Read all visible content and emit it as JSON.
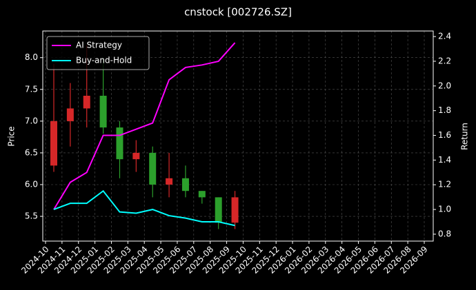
{
  "chart_data": {
    "type": "candlestick",
    "title": "cnstock [002726.SZ]",
    "ylabel": "Price",
    "y2label": "Return",
    "x": [
      "2024-10",
      "2024-11",
      "2024-12",
      "2025-01",
      "2025-02",
      "2025-03",
      "2025-04",
      "2025-05",
      "2025-06",
      "2025-07",
      "2025-08",
      "2025-09"
    ],
    "open": [
      6.3,
      7.0,
      7.2,
      7.4,
      6.9,
      6.4,
      6.5,
      6.0,
      6.1,
      5.9,
      5.8,
      5.4
    ],
    "high": [
      7.9,
      7.6,
      8.2,
      8.0,
      7.0,
      6.7,
      6.6,
      6.5,
      6.3,
      5.9,
      5.8,
      5.9
    ],
    "low": [
      6.2,
      6.6,
      6.9,
      6.8,
      6.1,
      6.2,
      5.8,
      5.8,
      5.8,
      5.7,
      5.3,
      5.3
    ],
    "close": [
      7.0,
      7.2,
      7.4,
      6.9,
      6.4,
      6.5,
      6.0,
      6.1,
      5.9,
      5.8,
      5.4,
      5.8
    ],
    "up_color": "#d62728",
    "down_color": "#2ca02c",
    "series": [
      {
        "name": "AI Strategy",
        "color": "#ff00ff",
        "axis": "y2",
        "values": [
          1.0,
          1.22,
          1.3,
          1.6,
          1.6,
          1.65,
          1.7,
          2.05,
          2.15,
          2.17,
          2.2,
          2.35
        ]
      },
      {
        "name": "Buy-and-Hold",
        "color": "#00ffff",
        "axis": "y2",
        "values": [
          1.0,
          1.05,
          1.05,
          1.15,
          0.98,
          0.97,
          1.0,
          0.95,
          0.93,
          0.9,
          0.9,
          0.87
        ]
      }
    ],
    "xlim": [
      "2024-10",
      "2026-09"
    ],
    "xticks": [
      "2024-10",
      "2024-11",
      "2024-12",
      "2025-01",
      "2025-02",
      "2025-03",
      "2025-04",
      "2025-05",
      "2025-06",
      "2025-07",
      "2025-08",
      "2025-09",
      "2025-10",
      "2025-11",
      "2025-12",
      "2026-01",
      "2026-02",
      "2026-03",
      "2026-04",
      "2026-05",
      "2026-06",
      "2026-07",
      "2026-08",
      "2026-09"
    ],
    "ylim": [
      5.11,
      8.42
    ],
    "yticks": [
      5.5,
      {
        "value": 6.0,
        "label": "6.0"
      },
      6.5,
      {
        "value": 7.0,
        "label": "7.0"
      },
      7.5,
      {
        "value": 8.0,
        "label": "8.0"
      }
    ],
    "y2lim": [
      0.744,
      2.445
    ],
    "y2ticks": [
      0.8,
      {
        "value": 1.0,
        "label": "1.0"
      },
      1.2,
      1.4,
      1.6,
      1.8,
      {
        "value": 2.0,
        "label": "2.0"
      },
      2.2,
      2.4
    ],
    "grid": true,
    "legend": "upper left"
  }
}
